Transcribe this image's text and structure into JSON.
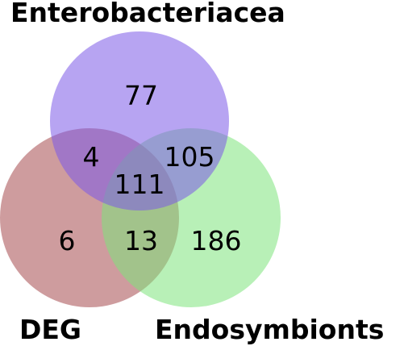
{
  "venn": {
    "sets": {
      "top": {
        "name": "Enterobacteriacea",
        "color": "#7b59e8"
      },
      "left": {
        "name": "DEG",
        "color": "#a64a4f"
      },
      "right": {
        "name": "Endosymbionts",
        "color": "#7ee37b"
      }
    },
    "opacity": 0.55,
    "regions": {
      "top_only": "77",
      "top_left": "4",
      "top_right": "105",
      "all_three": "111",
      "left_only": "6",
      "left_right": "13",
      "right_only": "186"
    }
  }
}
